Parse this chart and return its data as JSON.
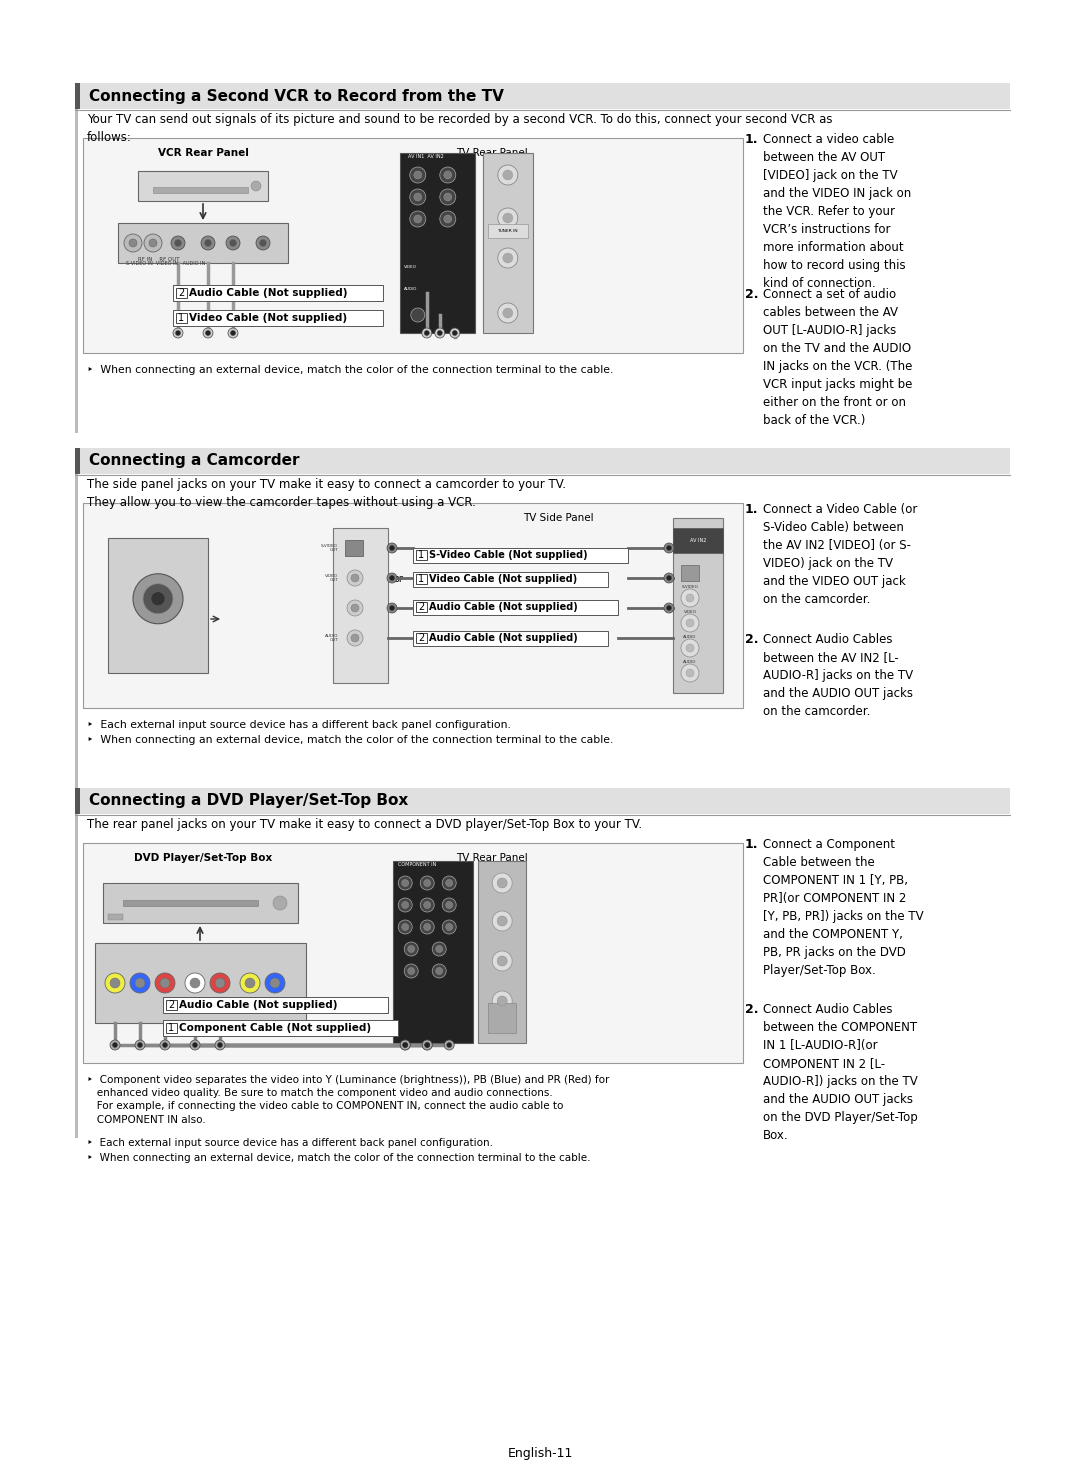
{
  "bg_color": "#ffffff",
  "section1_title": "Connecting a Second VCR to Record from the TV",
  "section1_intro": "Your TV can send out signals of its picture and sound to be recorded by a second VCR. To do this, connect your second VCR as\nfollows:",
  "section1_note": "‣  When connecting an external device, match the color of the connection terminal to the cable.",
  "section1_step1_num": "1.",
  "section1_step1_text": "Connect a video cable\nbetween the AV OUT\n[VIDEO] jack on the TV\nand the VIDEO IN jack on\nthe VCR. Refer to your\nVCR’s instructions for\nmore information about\nhow to record using this\nkind of connection.",
  "section1_step2_num": "2.",
  "section1_step2_text": "Connect a set of audio\ncables between the AV\nOUT [L-AUDIO-R] jacks\non the TV and the AUDIO\nIN jacks on the VCR. (The\nVCR input jacks might be\neither on the front or on\nback of the VCR.)",
  "section2_title": "Connecting a Camcorder",
  "section2_intro": "The side panel jacks on your TV make it easy to connect a camcorder to your TV.\nThey allow you to view the camcorder tapes without using a VCR.",
  "section2_note1": "‣  Each external input source device has a different back panel configuration.",
  "section2_note2": "‣  When connecting an external device, match the color of the connection terminal to the cable.",
  "section2_step1_num": "1.",
  "section2_step1_text": "Connect a Video Cable (or\nS-Video Cable) between\nthe AV IN2 [VIDEO] (or S-\nVIDEO) jack on the TV\nand the VIDEO OUT jack\non the camcorder.",
  "section2_step2_num": "2.",
  "section2_step2_text": "Connect Audio Cables\nbetween the AV IN2 [L-\nAUDIO-R] jacks on the TV\nand the AUDIO OUT jacks\non the camcorder.",
  "section3_title": "Connecting a DVD Player/Set-Top Box",
  "section3_intro": "The rear panel jacks on your TV make it easy to connect a DVD player/Set-Top Box to your TV.",
  "section3_note1": "‣  Component video separates the video into Y (Luminance (brightness)), PB (Blue) and PR (Red) for\n   enhanced video quality. Be sure to match the component video and audio connections.\n   For example, if connecting the video cable to COMPONENT IN, connect the audio cable to\n   COMPONENT IN also.",
  "section3_note2": "‣  Each external input source device has a different back panel configuration.",
  "section3_note3": "‣  When connecting an external device, match the color of the connection terminal to the cable.",
  "section3_step1_num": "1.",
  "section3_step1_text": "Connect a Component\nCable between the\nCOMPONENT IN 1 [Y, PB,\nPR](or COMPONENT IN 2\n[Y, PB, PR]) jacks on the TV\nand the COMPONENT Y,\nPB, PR jacks on the DVD\nPlayer/Set-Top Box.",
  "section3_step2_num": "2.",
  "section3_step2_text": "Connect Audio Cables\nbetween the COMPONENT\nIN 1 [L-AUDIO-R](or\nCOMPONENT IN 2 [L-\nAUDIO-R]) jacks on the TV\nand the AUDIO OUT jacks\non the DVD Player/Set-Top\nBox.",
  "footer": "English-11"
}
